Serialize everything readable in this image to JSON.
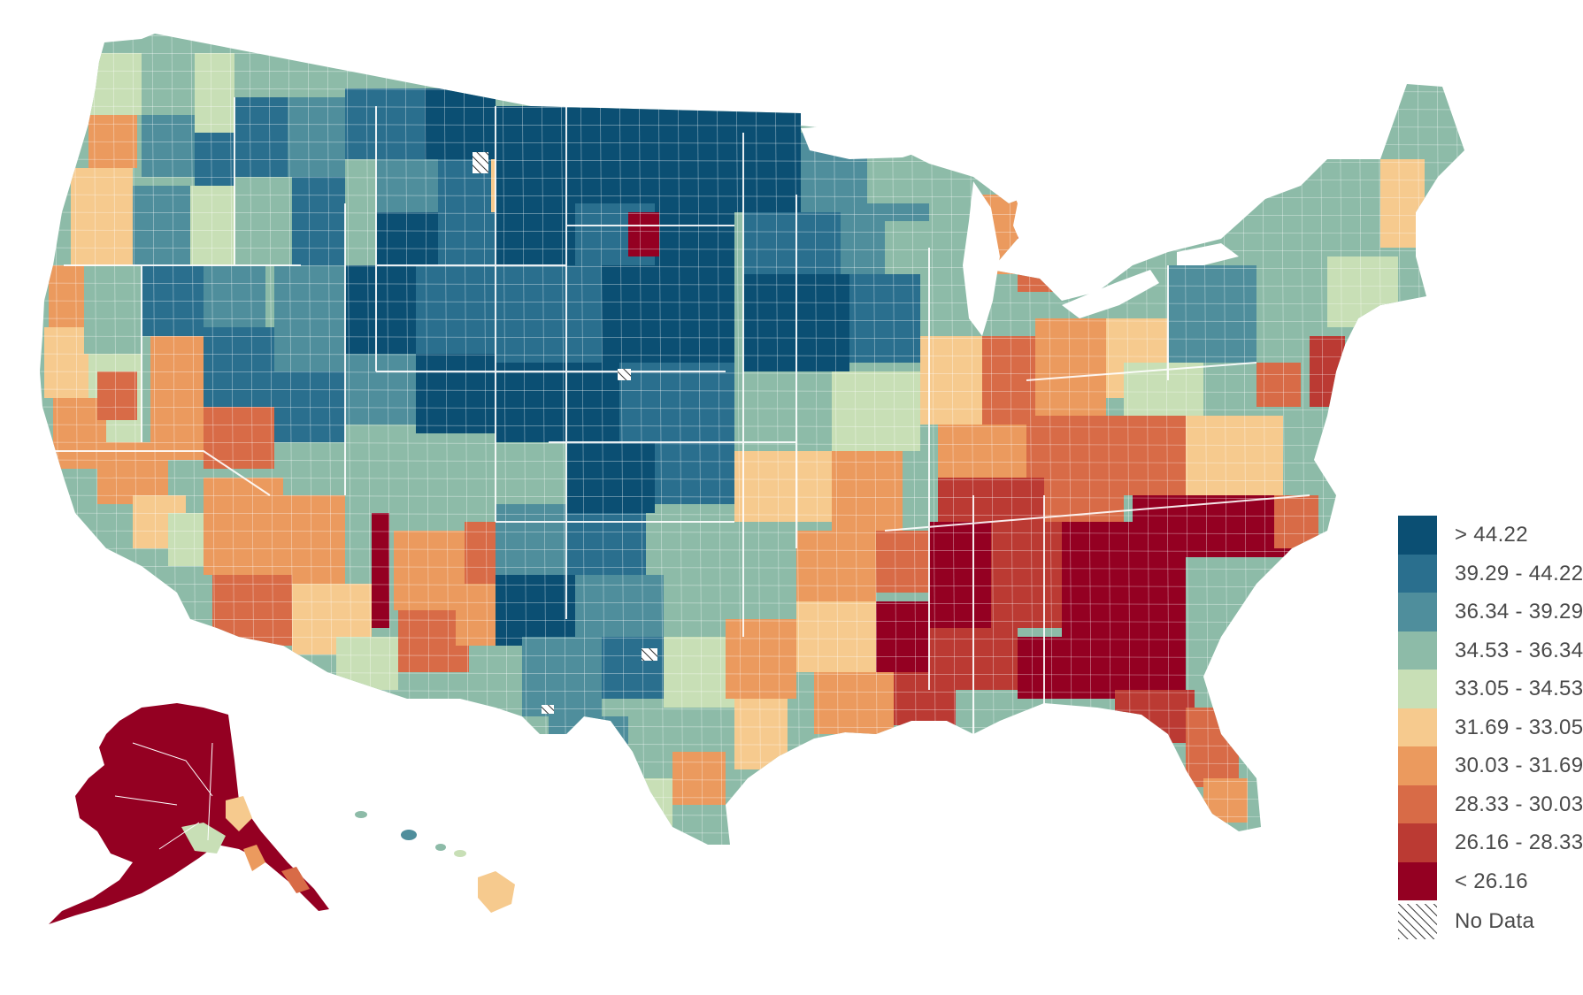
{
  "legend": {
    "items": [
      {
        "label": "> 44.22",
        "color": "#0b4f73"
      },
      {
        "label": "39.29 - 44.22",
        "color": "#2a6f8e"
      },
      {
        "label": "36.34 - 39.29",
        "color": "#4f8e9c"
      },
      {
        "label": "34.53 - 36.34",
        "color": "#8dbba8"
      },
      {
        "label": "33.05 - 34.53",
        "color": "#c8dfb6"
      },
      {
        "label": "31.69 - 33.05",
        "color": "#f6ca8e"
      },
      {
        "label": "30.03 - 31.69",
        "color": "#eb9a5e"
      },
      {
        "label": "28.33 - 30.03",
        "color": "#d86b47"
      },
      {
        "label": "26.16 - 28.33",
        "color": "#bb3a33"
      },
      {
        "label": "< 26.16",
        "color": "#940022"
      }
    ],
    "no_data_label": "No Data"
  }
}
